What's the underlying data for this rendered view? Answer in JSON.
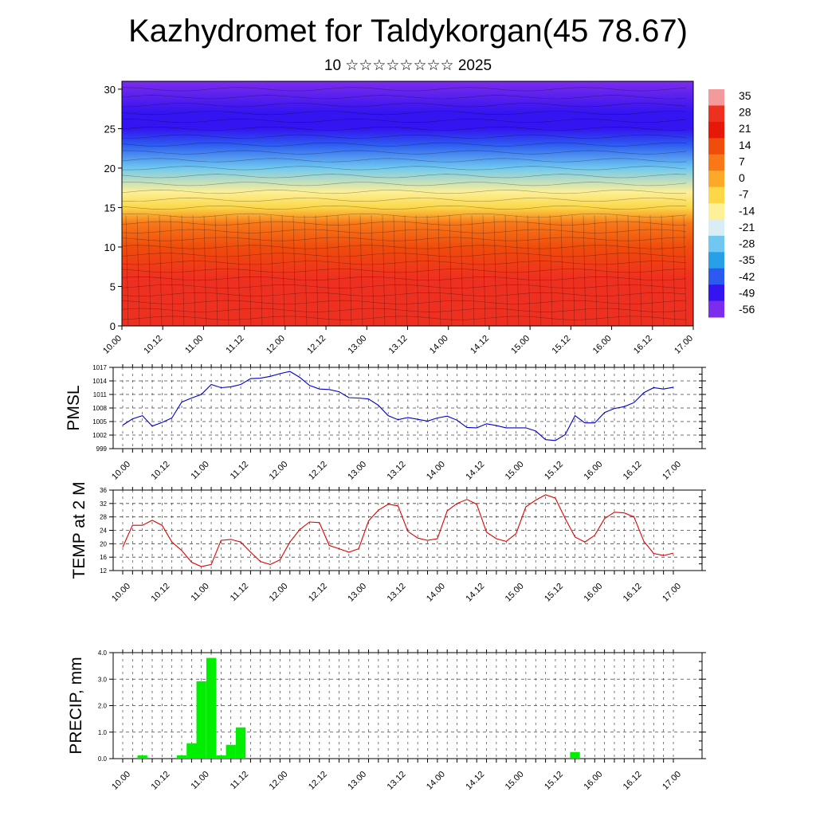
{
  "title": "Kazhydromet for Taldykorgan(45 78.67)",
  "subtitle": "10 ☆☆☆☆☆☆☆☆ 2025",
  "chart_data": [
    {
      "type": "heatmap",
      "name": "vertical-cross-section",
      "x_ticks": [
        "10.00",
        "10.12",
        "11.00",
        "11.12",
        "12.00",
        "12.12",
        "13.00",
        "13.12",
        "14.00",
        "14.12",
        "15.00",
        "15.12",
        "16.00",
        "16.12",
        "17.00"
      ],
      "ylim": [
        0,
        31
      ],
      "y_ticks": [
        0,
        5,
        10,
        15,
        20,
        25,
        30
      ],
      "colorbar": {
        "labels": [
          "35",
          "28",
          "21",
          "14",
          "7",
          "0",
          "-7",
          "-14",
          "-21",
          "-28",
          "-35",
          "-42",
          "-49",
          "-56"
        ],
        "colors": [
          "#f59a9a",
          "#ee3020",
          "#e81808",
          "#f04c0c",
          "#f87818",
          "#fca828",
          "#fcd848",
          "#fcf098",
          "#d8eef4",
          "#70c8f0",
          "#28a0e8",
          "#2c5af0",
          "#3414f0",
          "#7c2cec"
        ]
      },
      "color_profile_by_height": [
        {
          "h": 0,
          "v": 30
        },
        {
          "h": 6,
          "v": 27
        },
        {
          "h": 10,
          "v": 16
        },
        {
          "h": 13,
          "v": 4
        },
        {
          "h": 15,
          "v": -8
        },
        {
          "h": 17,
          "v": -17
        },
        {
          "h": 20,
          "v": -30
        },
        {
          "h": 23,
          "v": -44
        },
        {
          "h": 25,
          "v": -52
        },
        {
          "h": 27,
          "v": -50
        },
        {
          "h": 31,
          "v": -58
        }
      ]
    },
    {
      "type": "line",
      "name": "pmsl",
      "ylabel": "PMSL",
      "ylim": [
        999,
        1017
      ],
      "y_ticks": [
        999,
        1002,
        1005,
        1008,
        1011,
        1014,
        1017
      ],
      "x_ticks": [
        "10.00",
        "10.12",
        "11.00",
        "11.12",
        "12.00",
        "12.12",
        "13.00",
        "13.12",
        "14.00",
        "14.12",
        "15.00",
        "15.12",
        "16.00",
        "16.12",
        "17.00"
      ],
      "color": "#0000cc",
      "values": [
        1004.2,
        1005.6,
        1006.3,
        1004.0,
        1004.8,
        1005.8,
        1009.3,
        1010.2,
        1011.0,
        1013.2,
        1012.5,
        1012.7,
        1013.2,
        1014.5,
        1014.6,
        1015.0,
        1015.6,
        1016.1,
        1014.8,
        1013.0,
        1012.2,
        1012.1,
        1011.6,
        1010.3,
        1010.2,
        1010.0,
        1008.6,
        1006.3,
        1005.4,
        1005.9,
        1005.5,
        1005.1,
        1005.8,
        1006.2,
        1005.3,
        1003.7,
        1003.6,
        1004.5,
        1004.1,
        1003.6,
        1003.6,
        1003.6,
        1002.9,
        1001.0,
        1000.8,
        1002.1,
        1006.3,
        1004.7,
        1004.7,
        1007.0,
        1007.9,
        1008.3,
        1009.2,
        1011.4,
        1012.5,
        1012.2,
        1012.6
      ]
    },
    {
      "type": "line",
      "name": "temp-2m",
      "ylabel": "TEMP at 2 M",
      "ylim": [
        12,
        36
      ],
      "y_ticks": [
        12,
        16,
        20,
        24,
        28,
        32,
        36
      ],
      "x_ticks": [
        "10.00",
        "10.12",
        "11.00",
        "11.12",
        "12.00",
        "12.12",
        "13.00",
        "13.12",
        "14.00",
        "14.12",
        "15.00",
        "15.12",
        "16.00",
        "16.12",
        "17.00"
      ],
      "color": "#e00000",
      "values": [
        19.0,
        25.5,
        25.5,
        27.0,
        25.5,
        20.5,
        18.0,
        14.5,
        13.2,
        13.8,
        21.0,
        21.3,
        20.5,
        17.5,
        14.7,
        13.8,
        15.2,
        20.5,
        24.2,
        26.5,
        26.3,
        19.5,
        18.5,
        17.5,
        18.5,
        26.8,
        30.0,
        31.8,
        31.3,
        23.7,
        21.7,
        21.0,
        21.5,
        29.8,
        32.0,
        33.2,
        31.8,
        23.4,
        21.5,
        20.7,
        23.0,
        31.0,
        33.0,
        34.6,
        33.6,
        27.5,
        22.0,
        20.5,
        22.5,
        27.5,
        29.4,
        29.2,
        28.0,
        20.7,
        17.1,
        16.5,
        17.2
      ]
    },
    {
      "type": "bar",
      "name": "precip",
      "ylabel": "PRECIP, mm",
      "ylim": [
        0,
        4
      ],
      "y_ticks": [
        "0.0",
        "1.0",
        "2.0",
        "3.0",
        "4.0"
      ],
      "x_ticks": [
        "10.00",
        "10.12",
        "11.00",
        "11.12",
        "12.00",
        "12.12",
        "13.00",
        "13.12",
        "14.00",
        "14.12",
        "15.00",
        "15.12",
        "16.00",
        "16.12",
        "17.00"
      ],
      "bar_color": "#00ee00",
      "values": [
        0,
        0,
        0.12,
        0,
        0,
        0,
        0.12,
        0.58,
        2.92,
        3.8,
        0.12,
        0.52,
        1.18,
        0,
        0,
        0,
        0,
        0,
        0,
        0,
        0,
        0,
        0,
        0,
        0,
        0,
        0,
        0,
        0,
        0,
        0,
        0,
        0,
        0,
        0,
        0,
        0,
        0,
        0,
        0,
        0,
        0,
        0,
        0,
        0,
        0,
        0.25,
        0,
        0,
        0,
        0,
        0,
        0,
        0,
        0,
        0,
        0
      ]
    }
  ]
}
